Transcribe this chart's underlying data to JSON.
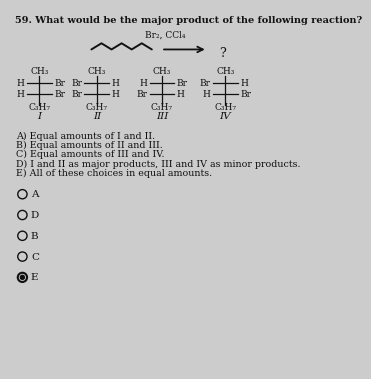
{
  "title": "59. What would be the major product of the following reaction?",
  "reagent": "Br₂, CCl₄",
  "question_mark": "?",
  "background_color": "#cccccc",
  "text_color": "#111111",
  "structures": [
    {
      "label": "I",
      "top": "CH₃",
      "row1": [
        "H",
        "Br"
      ],
      "row2": [
        "H",
        "Br"
      ],
      "bottom": "C₃H₇"
    },
    {
      "label": "II",
      "top": "CH₃",
      "row1": [
        "Br",
        "H"
      ],
      "row2": [
        "Br",
        "H"
      ],
      "bottom": "C₃H₇"
    },
    {
      "label": "III",
      "top": "CH₃",
      "row1": [
        "H",
        "Br"
      ],
      "row2": [
        "Br",
        "H"
      ],
      "bottom": "C₃H₇"
    },
    {
      "label": "IV",
      "top": "CH₃",
      "row1": [
        "Br",
        "H"
      ],
      "row2": [
        "H",
        "Br"
      ],
      "bottom": "C₃H₇"
    }
  ],
  "choices": [
    "A) Equal amounts of I and II.",
    "B) Equal amounts of II and III.",
    "C) Equal amounts of III and IV.",
    "D) I and II as major products, III and IV as minor products.",
    "E) All of these choices in equal amounts."
  ],
  "radio_options": [
    "A",
    "D",
    "B",
    "C",
    "E"
  ],
  "radio_filled": [
    "E"
  ],
  "fs_title": 7.0,
  "fs_struct": 6.5,
  "fs_choice": 6.8,
  "fs_label": 7.5,
  "fs_radio": 7.5
}
